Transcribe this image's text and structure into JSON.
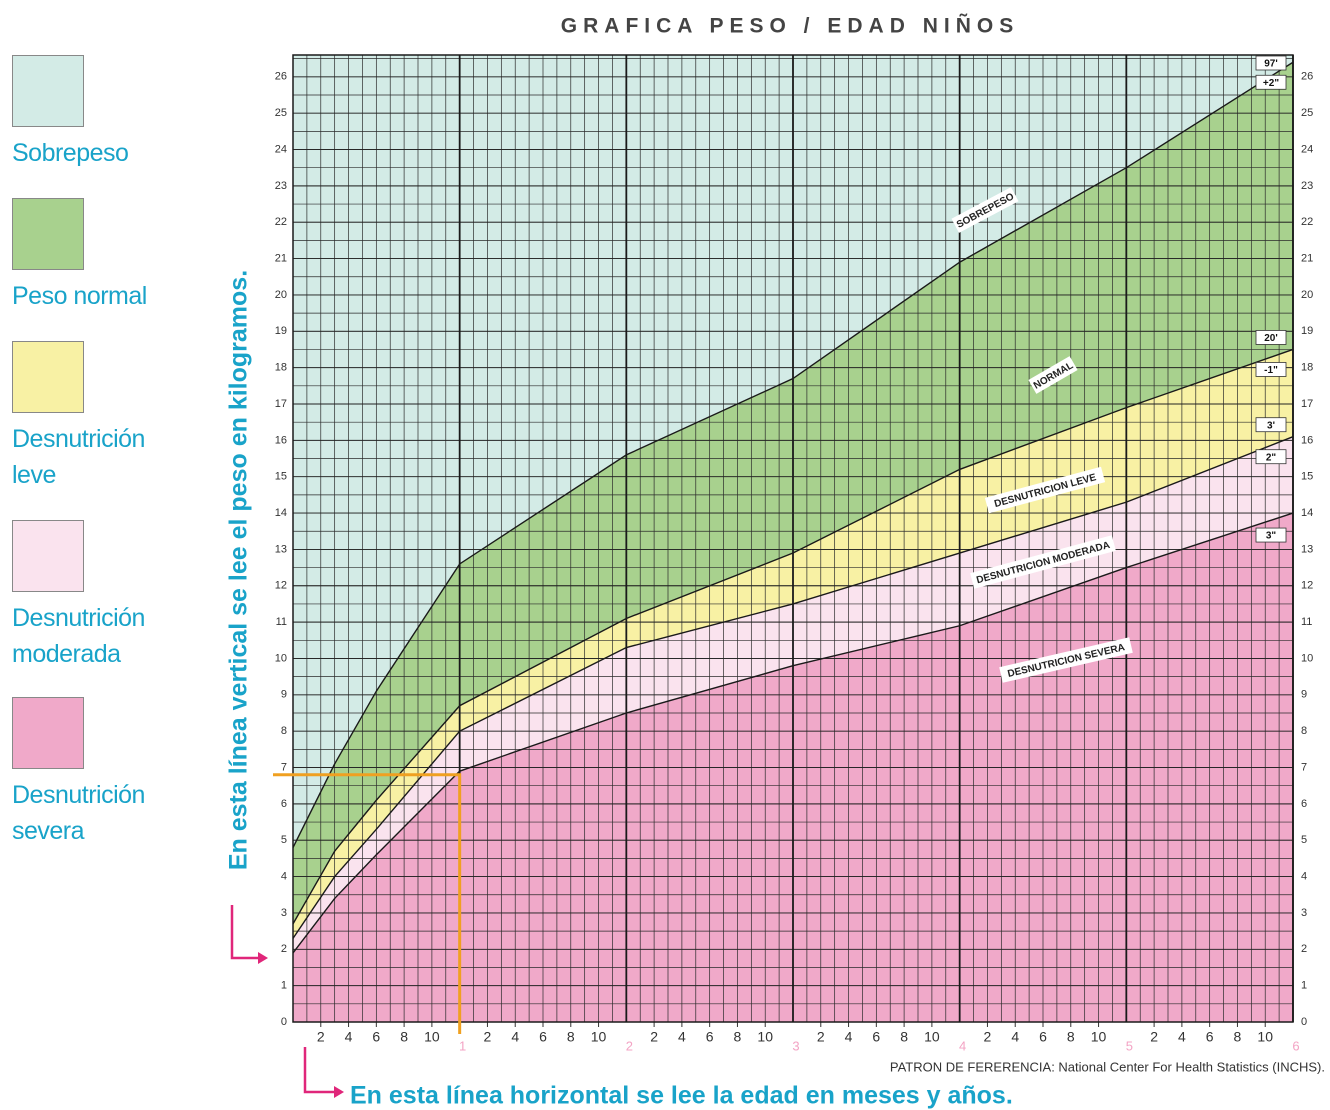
{
  "chart_data": {
    "type": "area",
    "title": "GRAFICA PESO / EDAD NIÑOS",
    "annotations": {
      "y_note": "En esta línea vertical se lee el peso en kilogramos.",
      "x_note": "En esta línea horizontal se lee la edad en meses y años.",
      "source": "PATRON DE FERERENCIA:  National  Center For Health Statistics  (INCHS)."
    },
    "x": [
      0,
      3,
      6,
      12,
      24,
      36,
      48,
      60,
      72
    ],
    "series": [
      {
        "labels": [
          "97'",
          "+2\""
        ],
        "values": [
          4.8,
          7.1,
          9.1,
          12.6,
          15.6,
          17.7,
          20.9,
          23.5,
          26.4
        ]
      },
      {
        "labels": [
          "20'",
          "-1\""
        ],
        "values": [
          2.7,
          4.7,
          6.1,
          8.7,
          11.1,
          12.9,
          15.2,
          16.9,
          18.5
        ]
      },
      {
        "labels": [
          "3'",
          "2\""
        ],
        "values": [
          2.3,
          4.0,
          5.3,
          8.0,
          10.3,
          11.5,
          12.9,
          14.3,
          16.1
        ]
      },
      {
        "labels": [
          "3\""
        ],
        "values": [
          1.9,
          3.4,
          4.6,
          6.9,
          8.5,
          9.8,
          10.9,
          12.5,
          14.0
        ]
      }
    ],
    "bands": [
      {
        "name": "Sobrepeso",
        "label": "SOBREPESO",
        "color": "#d3ebe6"
      },
      {
        "name": "Peso normal",
        "label": "NORMAL",
        "color": "#a8d18e"
      },
      {
        "name": "Desnutrición leve",
        "label": "DESNUTRICION LEVE",
        "color": "#f8f1a4"
      },
      {
        "name": "Desnutrición moderada",
        "label": "DESNUTRICION MODERADA",
        "color": "#fae3ee"
      },
      {
        "name": "Desnutrición severa",
        "label": "DESNUTRICION SEVERA",
        "color": "#f0a9c9"
      }
    ],
    "xlim": [
      0,
      72
    ],
    "ylim": [
      0,
      26.6
    ],
    "yticks": [
      0,
      1,
      2,
      3,
      4,
      5,
      6,
      7,
      8,
      9,
      10,
      11,
      12,
      13,
      14,
      15,
      16,
      17,
      18,
      19,
      20,
      21,
      22,
      23,
      24,
      25,
      26
    ],
    "xticks": [
      2,
      4,
      6,
      8,
      10,
      {
        "value": 14,
        "label": "2"
      },
      {
        "value": 16,
        "label": "4"
      },
      {
        "value": 18,
        "label": "6"
      },
      {
        "value": 20,
        "label": "8"
      },
      {
        "value": 22,
        "label": "10"
      },
      {
        "value": 26,
        "label": "2"
      },
      {
        "value": 28,
        "label": "4"
      },
      {
        "value": 30,
        "label": "6"
      },
      {
        "value": 32,
        "label": "8"
      },
      {
        "value": 34,
        "label": "10"
      },
      {
        "value": 38,
        "label": "2"
      },
      {
        "value": 40,
        "label": "4"
      },
      {
        "value": 42,
        "label": "6"
      },
      {
        "value": 44,
        "label": "8"
      },
      {
        "value": 46,
        "label": "10"
      },
      {
        "value": 50,
        "label": "2"
      },
      {
        "value": 52,
        "label": "4"
      },
      {
        "value": 54,
        "label": "6"
      },
      {
        "value": 56,
        "label": "8"
      },
      {
        "value": 58,
        "label": "10"
      },
      {
        "value": 62,
        "label": "2"
      },
      {
        "value": 64,
        "label": "4"
      },
      {
        "value": 66,
        "label": "6"
      },
      {
        "value": 68,
        "label": "8"
      },
      {
        "value": 70,
        "label": "10"
      }
    ],
    "year_ticks": [
      {
        "value": 12,
        "label": "1"
      },
      {
        "value": 24,
        "label": "2"
      },
      {
        "value": 36,
        "label": "3"
      },
      {
        "value": 48,
        "label": "4"
      },
      {
        "value": 60,
        "label": "5"
      },
      {
        "value": 72,
        "label": "6"
      }
    ],
    "year_tick_color": "#f3a3c4",
    "x_minor_step": 1,
    "y_minor_step": 0.5,
    "reference": {
      "x": 12,
      "y": 6.8,
      "color": "#f0a020"
    }
  }
}
